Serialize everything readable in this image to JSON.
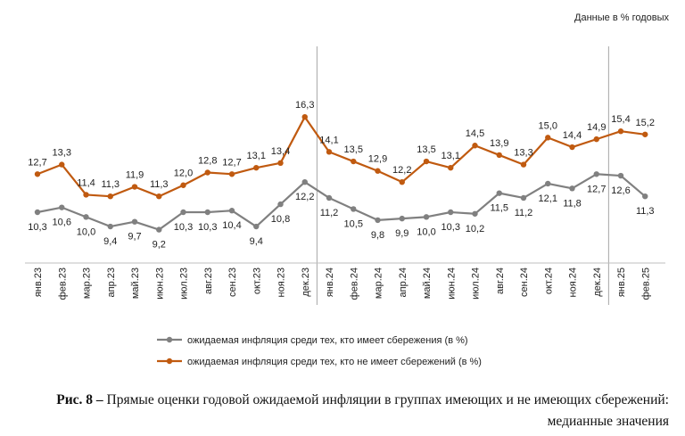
{
  "units_note": "Данные в % годовых",
  "caption": {
    "prefix": "Рис. 8 –",
    "text": "Прямые оценки годовой ожидаемой инфляции в группах имеющих и не имеющих сбережений: медианные значения"
  },
  "colors": {
    "with_savings": "#808080",
    "without_savings": "#C05A10",
    "axis": "#bfbfbf",
    "separator": "#a6a6a6"
  },
  "chart_data": {
    "type": "line",
    "categories": [
      "янв.23",
      "фев.23",
      "мар.23",
      "апр.23",
      "май.23",
      "июн.23",
      "июл.23",
      "авг.23",
      "сен.23",
      "окт.23",
      "ноя.23",
      "дек.23",
      "янв.24",
      "фев.24",
      "мар.24",
      "апр.24",
      "май.24",
      "июн.24",
      "июл.24",
      "авг.24",
      "сен.24",
      "окт.24",
      "ноя.24",
      "дек.24",
      "янв.25",
      "фев.25"
    ],
    "series": [
      {
        "name": "ожидаемая инфляция среди тех, кто имеет сбережения (в %)",
        "color": "#808080",
        "values": [
          10.3,
          10.6,
          10.0,
          9.4,
          9.7,
          9.2,
          10.3,
          10.3,
          10.4,
          9.4,
          10.8,
          12.2,
          11.2,
          10.5,
          9.8,
          9.9,
          10.0,
          10.3,
          10.2,
          11.5,
          11.2,
          12.1,
          11.8,
          12.7,
          12.6,
          11.3
        ],
        "labels": [
          "10,3",
          "10,6",
          "10,0",
          "9,4",
          "9,7",
          "9,2",
          "10,3",
          "10,3",
          "10,4",
          "9,4",
          "10,8",
          "12,2",
          "11,2",
          "10,5",
          "9,8",
          "9,9",
          "10,0",
          "10,3",
          "10,2",
          "11,5",
          "11,2",
          "12,1",
          "11,8",
          "12,7",
          "12,6",
          "11,3"
        ]
      },
      {
        "name": "ожидаемая инфляция среди тех, кто не имеет сбережений (в %)",
        "color": "#C05A10",
        "values": [
          12.7,
          13.3,
          11.4,
          11.3,
          11.9,
          11.3,
          12.0,
          12.8,
          12.7,
          13.1,
          13.4,
          16.3,
          14.1,
          13.5,
          12.9,
          12.2,
          13.5,
          13.1,
          14.5,
          13.9,
          13.3,
          15.0,
          14.4,
          14.9,
          15.4,
          15.2
        ],
        "labels": [
          "12,7",
          "13,3",
          "11,4",
          "11,3",
          "11,9",
          "11,3",
          "12,0",
          "12,8",
          "12,7",
          "13,1",
          "13,4",
          "16,3",
          "14,1",
          "13,5",
          "12,9",
          "12,2",
          "13,5",
          "13,1",
          "14,5",
          "13,9",
          "13,3",
          "15,0",
          "14,4",
          "14,9",
          "15,4",
          "15,2"
        ]
      }
    ],
    "year_separators_after": [
      "дек.23",
      "дек.24"
    ],
    "grid": false,
    "legend_position": "bottom"
  }
}
